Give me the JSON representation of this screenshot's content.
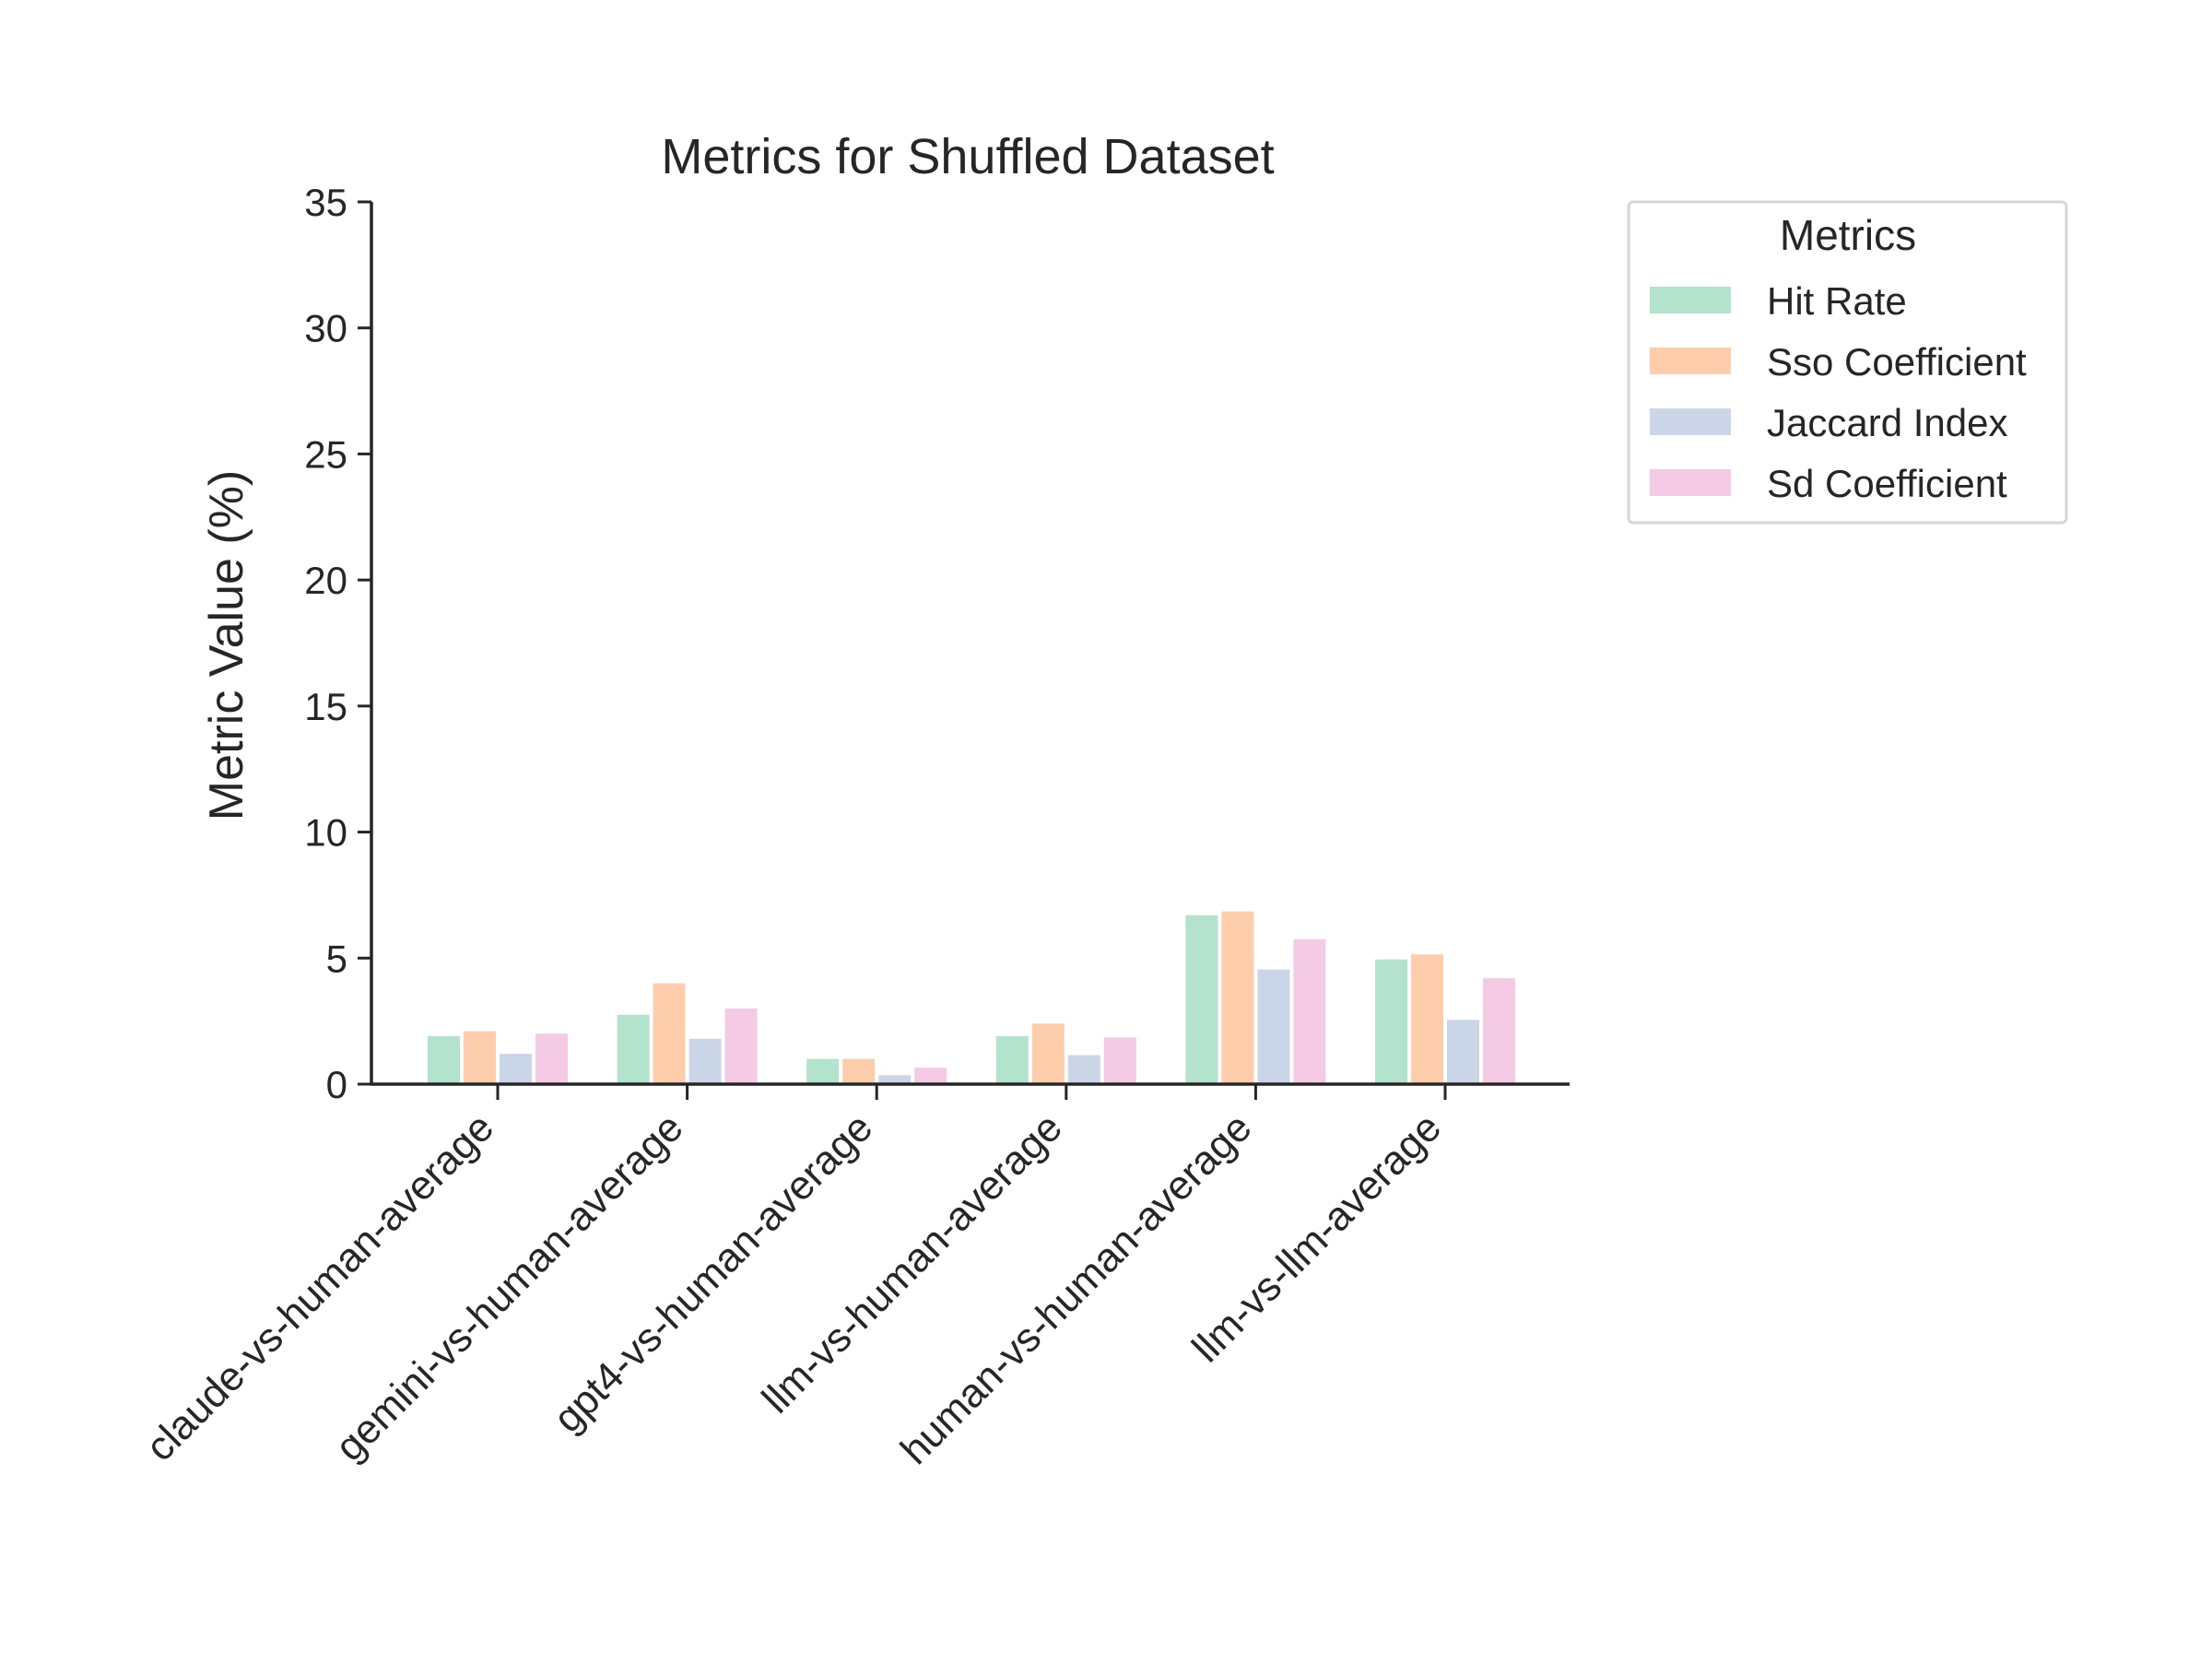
{
  "chart_data": {
    "type": "bar",
    "title": "Metrics for Shuffled Dataset",
    "xlabel": "",
    "ylabel": "Metric Value (%)",
    "ylim": [
      0,
      35
    ],
    "yticks": [
      0,
      5,
      10,
      15,
      20,
      25,
      30,
      35
    ],
    "grid": false,
    "legend": {
      "title": "Metrics",
      "placement": "outside-top-right"
    },
    "categories": [
      "claude-vs-human-average",
      "gemini-vs-human-average",
      "gpt4-vs-human-average",
      "llm-vs-human-average",
      "human-vs-human-average",
      "llm-vs-llm-average"
    ],
    "series": [
      {
        "name": "Hit Rate",
        "color": "#b3e2cd",
        "values": [
          1.9,
          2.75,
          1.0,
          1.9,
          6.7,
          4.95
        ]
      },
      {
        "name": "Sso Coefficient",
        "color": "#fdcdac",
        "values": [
          2.1,
          4.0,
          1.0,
          2.4,
          6.85,
          5.15
        ]
      },
      {
        "name": "Jaccard Index",
        "color": "#cbd5e8",
        "values": [
          1.2,
          1.8,
          0.35,
          1.15,
          4.55,
          2.55
        ]
      },
      {
        "name": "Sd Coefficient",
        "color": "#f4cae4",
        "values": [
          2.0,
          3.0,
          0.65,
          1.85,
          5.75,
          4.2
        ]
      }
    ]
  }
}
